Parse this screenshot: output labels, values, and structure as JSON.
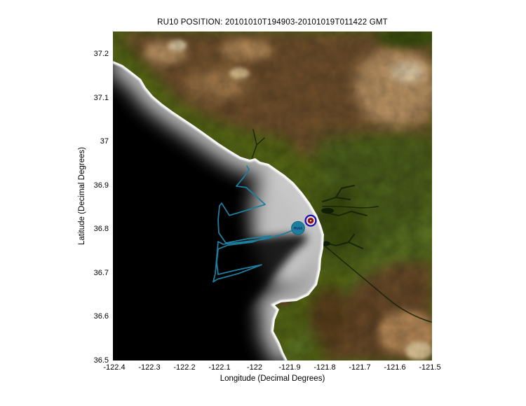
{
  "title": "RU10 POSITION: 20101010T194903-20101019T011422 GMT",
  "axes": {
    "xlabel": "Longitude (Decimal Degrees)",
    "ylabel": "Latitude (Decimal Degrees)",
    "x_ticks": [
      "-122.4",
      "-122.3",
      "-122.2",
      "-122.1",
      "-122",
      "-121.9",
      "-121.8",
      "-121.7",
      "-121.6",
      "-121.5"
    ],
    "y_ticks": [
      "36.5",
      "36.6",
      "36.7",
      "36.8",
      "36.9",
      "37",
      "37.1",
      "37.2"
    ],
    "lon_range": [
      -122.404,
      -121.494
    ],
    "lat_range": [
      36.5,
      37.2528
    ]
  },
  "glider": {
    "id": "RU10",
    "track_color": "#1e7e9e",
    "track_lonlat": [
      [
        -122.022,
        36.945
      ],
      [
        -122.016,
        36.937
      ],
      [
        -122.032,
        36.918
      ],
      [
        -122.052,
        36.899
      ],
      [
        -122.024,
        36.896
      ],
      [
        -121.996,
        36.876
      ],
      [
        -121.97,
        36.857
      ],
      [
        -122.026,
        36.843
      ],
      [
        -122.072,
        36.832
      ],
      [
        -122.094,
        36.86
      ],
      [
        -122.1,
        36.854
      ],
      [
        -122.104,
        36.822
      ],
      [
        -122.102,
        36.792
      ],
      [
        -122.082,
        36.769
      ],
      [
        -122.016,
        36.779
      ],
      [
        -121.954,
        36.785
      ],
      [
        -122.006,
        36.771
      ],
      [
        -122.076,
        36.764
      ],
      [
        -122.104,
        36.755
      ],
      [
        -122.108,
        36.724
      ],
      [
        -122.104,
        36.697
      ],
      [
        -122.046,
        36.708
      ],
      [
        -121.98,
        36.719
      ],
      [
        -122.046,
        36.699
      ],
      [
        -122.106,
        36.686
      ],
      [
        -122.118,
        36.68
      ],
      [
        -122.112,
        36.699
      ],
      [
        -122.108,
        36.735
      ],
      [
        -122.104,
        36.772
      ],
      [
        -122.09,
        36.766
      ],
      [
        -122.036,
        36.771
      ],
      [
        -121.976,
        36.777
      ],
      [
        -121.926,
        36.787
      ],
      [
        -121.884,
        36.8
      ]
    ],
    "label_marker": {
      "lon": -121.876,
      "lat": 36.803,
      "fill": "#1e7e9e",
      "text_color": "#0e1168"
    },
    "position_marker": {
      "lon": -121.84,
      "lat": 36.82,
      "ring_colors": [
        "#1c14b0",
        "#ffffff",
        "#cf1400",
        "#1a1670",
        "#ffd200"
      ]
    }
  },
  "map_colors": {
    "deep_ocean": "#000000",
    "shelf": "#d8d8d8",
    "shore_fringe": "#ffffff",
    "land_green": "#5a6c16",
    "mountain_brown": "#74532e",
    "ridge_tan": "#c49a68",
    "peak_bright": "#ecd6ae",
    "valley_dark_green": "#3c4f10"
  }
}
